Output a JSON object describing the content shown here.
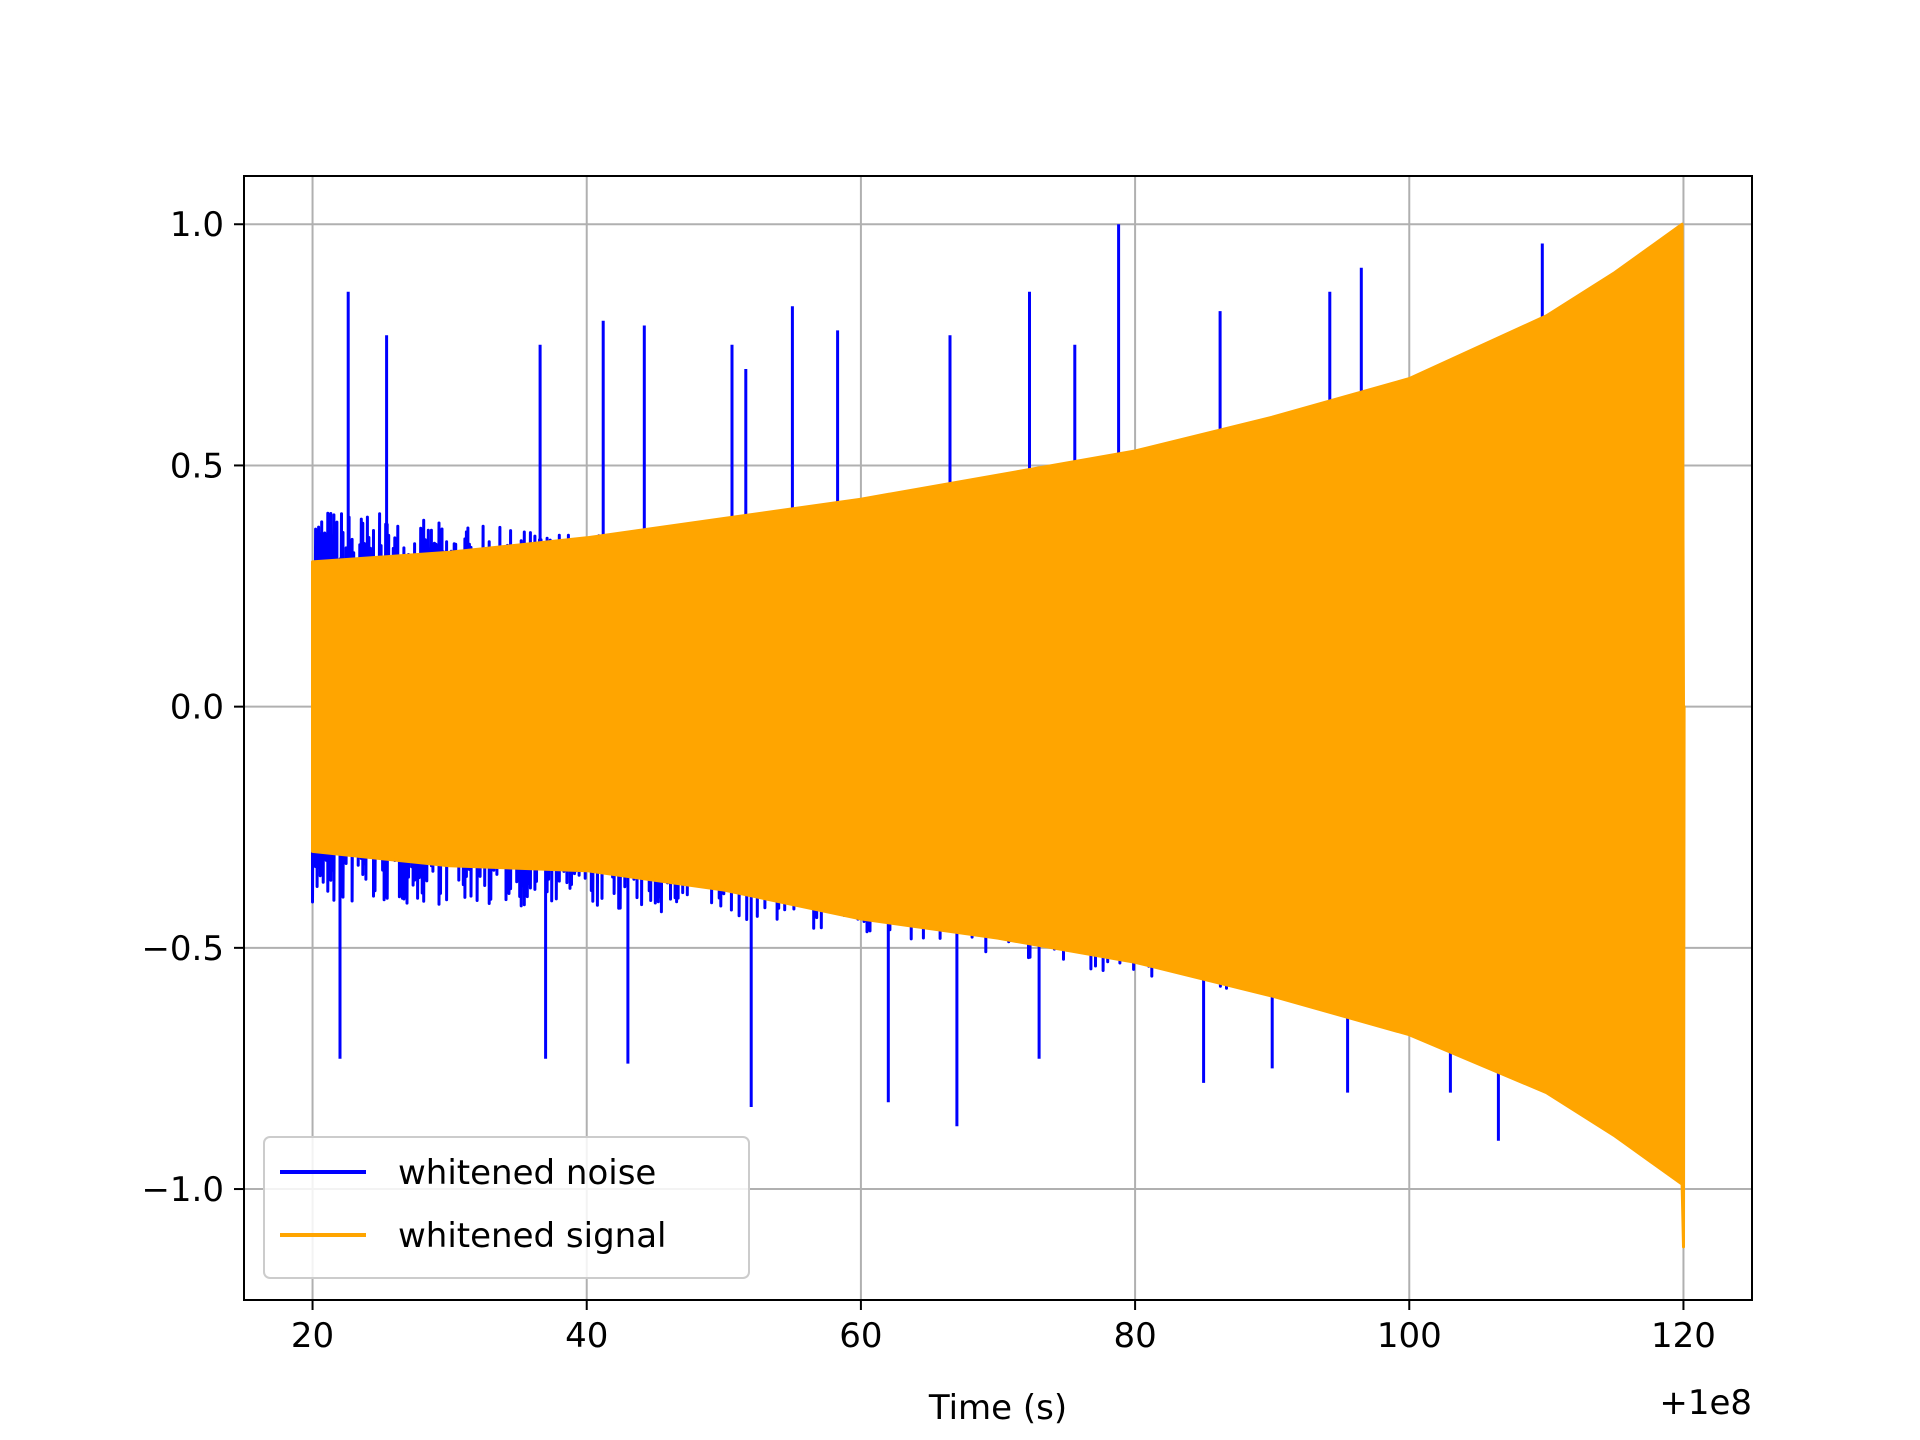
{
  "chart_data": {
    "type": "line",
    "title": "",
    "xlabel": "Time (s)",
    "ylabel": "",
    "x_offset_label": "+1e8",
    "xlim": [
      15,
      125
    ],
    "ylim": [
      -1.23,
      1.1
    ],
    "x_ticks": [
      20,
      40,
      60,
      80,
      100,
      120
    ],
    "x_tick_labels": [
      "20",
      "40",
      "60",
      "80",
      "100",
      "120"
    ],
    "y_ticks": [
      1.0,
      0.5,
      0.0,
      -0.5,
      -1.0
    ],
    "y_tick_labels": [
      "1.0",
      "0.5",
      "0.0",
      "−0.5",
      "−1.0"
    ],
    "grid": true,
    "legend_position": "lower-left",
    "series": [
      {
        "name": "whitened noise",
        "color": "#0000ff",
        "x_range": [
          20,
          120
        ],
        "envelope_upper": [
          [
            20,
            0.42
          ],
          [
            30,
            0.38
          ],
          [
            40,
            0.36
          ],
          [
            50,
            0.38
          ],
          [
            60,
            0.42
          ],
          [
            70,
            0.47
          ],
          [
            80,
            0.52
          ],
          [
            90,
            0.56
          ],
          [
            100,
            0.56
          ],
          [
            110,
            0.48
          ],
          [
            120,
            0.0
          ]
        ],
        "envelope_lower": [
          [
            20,
            -0.42
          ],
          [
            30,
            -0.41
          ],
          [
            40,
            -0.42
          ],
          [
            50,
            -0.44
          ],
          [
            60,
            -0.47
          ],
          [
            70,
            -0.52
          ],
          [
            80,
            -0.56
          ],
          [
            90,
            -0.6
          ],
          [
            100,
            -0.62
          ],
          [
            110,
            -0.66
          ],
          [
            120,
            -0.0
          ]
        ],
        "peaks": [
          [
            22.6,
            0.86
          ],
          [
            25.4,
            0.77
          ],
          [
            36.6,
            0.75
          ],
          [
            41.2,
            0.8
          ],
          [
            44.2,
            0.79
          ],
          [
            50.6,
            0.75
          ],
          [
            51.6,
            0.7
          ],
          [
            55.0,
            0.83
          ],
          [
            58.3,
            0.78
          ],
          [
            66.5,
            0.77
          ],
          [
            72.3,
            0.86
          ],
          [
            75.6,
            0.75
          ],
          [
            78.8,
            1.0
          ],
          [
            86.2,
            0.82
          ],
          [
            94.2,
            0.86
          ],
          [
            96.5,
            0.91
          ],
          [
            109.7,
            0.96
          ],
          [
            22.0,
            -0.73
          ],
          [
            37.0,
            -0.73
          ],
          [
            43.0,
            -0.74
          ],
          [
            52.0,
            -0.83
          ],
          [
            62.0,
            -0.82
          ],
          [
            67.0,
            -0.87
          ],
          [
            73.0,
            -0.73
          ],
          [
            85.0,
            -0.78
          ],
          [
            90.0,
            -0.75
          ],
          [
            95.5,
            -0.8
          ],
          [
            103.0,
            -0.8
          ],
          [
            106.5,
            -0.9
          ]
        ]
      },
      {
        "name": "whitened signal",
        "color": "#ffa500",
        "x_range": [
          20,
          120
        ],
        "envelope_upper": [
          [
            20,
            0.3
          ],
          [
            30,
            0.32
          ],
          [
            40,
            0.35
          ],
          [
            50,
            0.39
          ],
          [
            60,
            0.43
          ],
          [
            70,
            0.48
          ],
          [
            80,
            0.53
          ],
          [
            90,
            0.6
          ],
          [
            100,
            0.68
          ],
          [
            110,
            0.81
          ],
          [
            115,
            0.9
          ],
          [
            119.9,
            1.0
          ],
          [
            120,
            0.0
          ]
        ],
        "envelope_lower": [
          [
            20,
            -0.3
          ],
          [
            30,
            -0.33
          ],
          [
            40,
            -0.34
          ],
          [
            50,
            -0.38
          ],
          [
            60,
            -0.44
          ],
          [
            70,
            -0.48
          ],
          [
            80,
            -0.53
          ],
          [
            90,
            -0.6
          ],
          [
            100,
            -0.68
          ],
          [
            110,
            -0.8
          ],
          [
            115,
            -0.89
          ],
          [
            119.9,
            -0.99
          ],
          [
            120,
            -1.12
          ],
          [
            120.05,
            0.0
          ]
        ]
      }
    ]
  }
}
